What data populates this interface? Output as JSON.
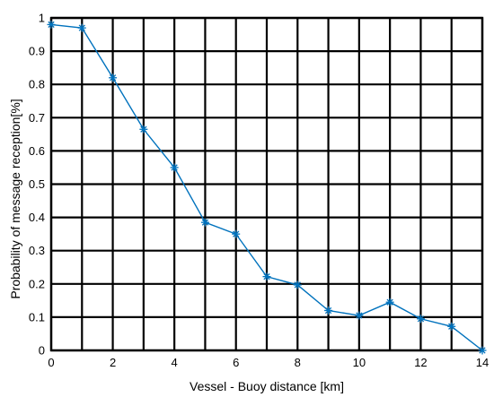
{
  "chart_data": {
    "type": "line",
    "title": "",
    "xlabel": "Vessel - Buoy distance [km]",
    "ylabel": "Probability of message reception[%]",
    "xlim": [
      0,
      14
    ],
    "ylim": [
      0,
      1
    ],
    "grid": true,
    "legend": "none",
    "x_ticks": [
      "0",
      "2",
      "4",
      "6",
      "8",
      "10",
      "12",
      "14"
    ],
    "y_ticks": [
      "0",
      "0.1",
      "0.2",
      "0.3",
      "0.4",
      "0.5",
      "0.6",
      "0.7",
      "0.8",
      "0.9",
      "1"
    ],
    "series": [
      {
        "marker": "asterisk",
        "color": "#0072bd",
        "x": [
          0,
          1,
          2,
          3,
          4,
          5,
          6,
          7,
          8,
          9,
          10,
          11,
          12,
          13,
          14
        ],
        "y": [
          0.98,
          0.97,
          0.82,
          0.665,
          0.55,
          0.385,
          0.35,
          0.222,
          0.197,
          0.12,
          0.105,
          0.145,
          0.095,
          0.072,
          0.0
        ]
      }
    ]
  }
}
